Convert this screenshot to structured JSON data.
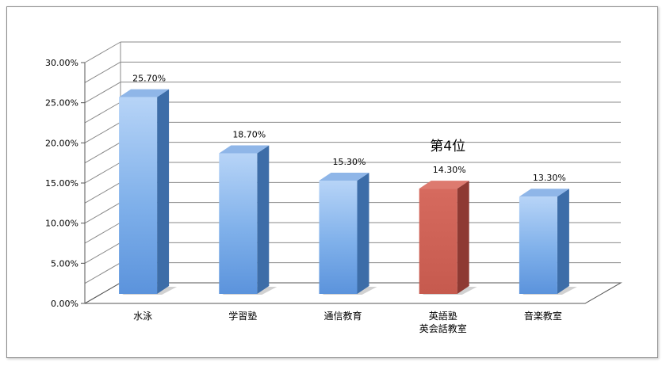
{
  "chart_data": {
    "type": "bar",
    "style": "3d-column",
    "categories": [
      [
        "水泳"
      ],
      [
        "学習塾"
      ],
      [
        "通信教育"
      ],
      [
        "英語塾",
        "英会話教室"
      ],
      [
        "音楽教室"
      ]
    ],
    "values": [
      25.7,
      18.7,
      15.3,
      14.3,
      13.3
    ],
    "data_labels": [
      "25.70%",
      "18.70%",
      "15.30%",
      "14.30%",
      "13.30%"
    ],
    "yticks": [
      "0.00%",
      "5.00%",
      "10.00%",
      "15.00%",
      "20.00%",
      "25.00%",
      "30.00%"
    ],
    "ylim": [
      0,
      30
    ],
    "grid": true,
    "legend": false,
    "highlight_index": 3,
    "annotation": "第4位",
    "colors": {
      "bar_front": "#6fa4e6",
      "bar_front_light": "#b7d4f7",
      "bar_side": "#3d6da8",
      "bar_top": "#8fb6e8",
      "highlight_front": "#cf5f52",
      "highlight_side": "#8e3a33",
      "highlight_top": "#dd7a6f",
      "grid": "#8a8a8a"
    }
  }
}
